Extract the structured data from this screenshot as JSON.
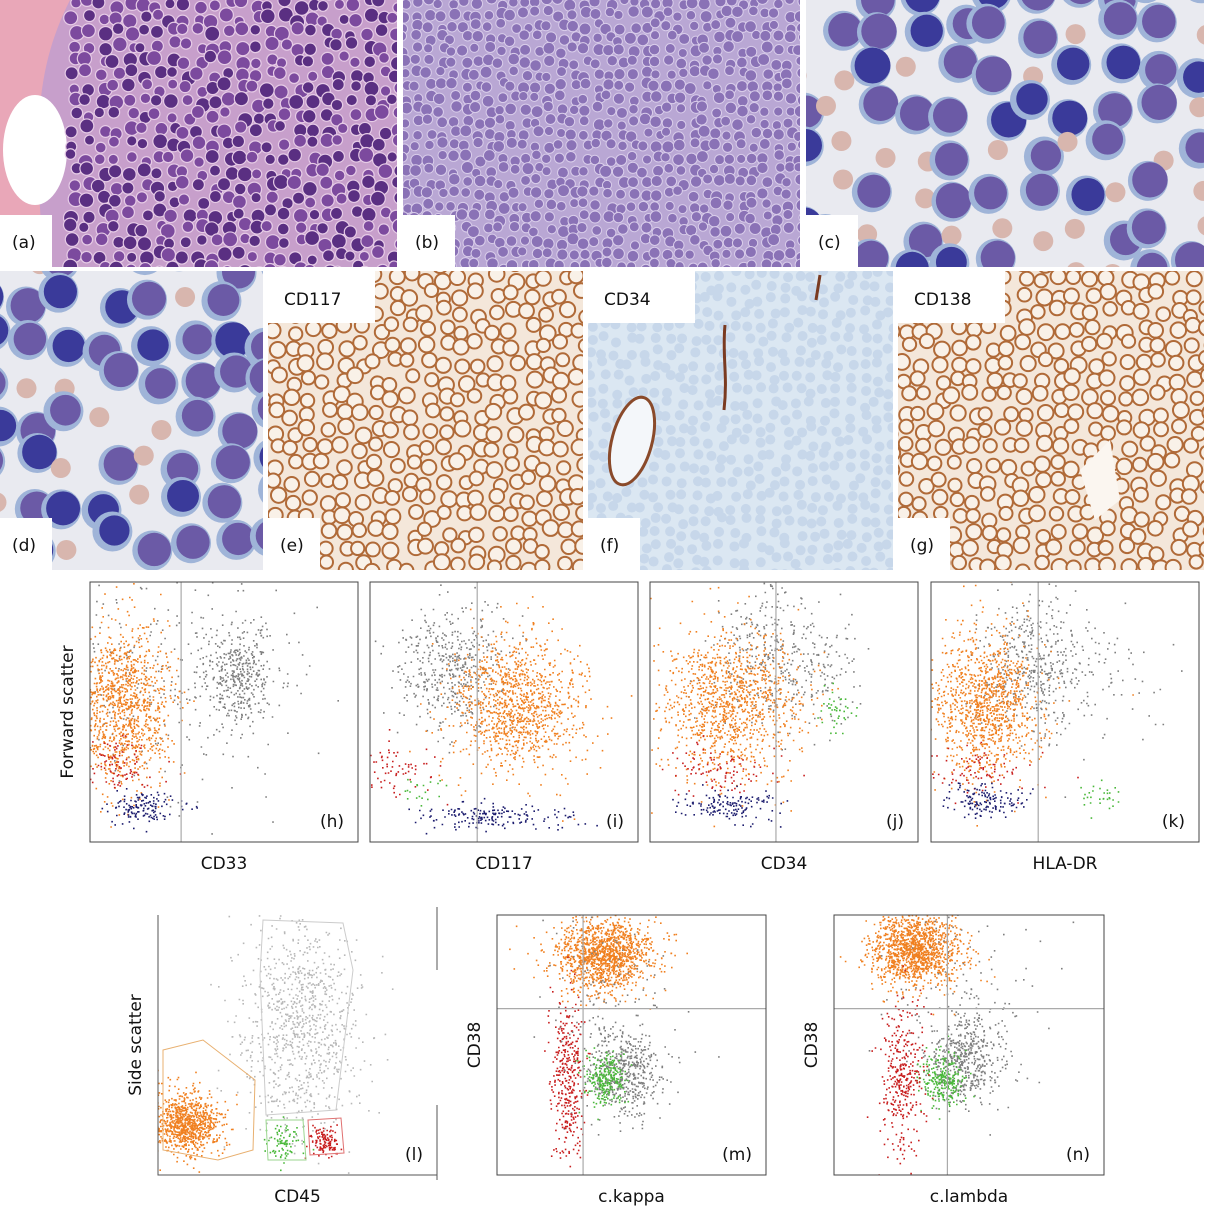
{
  "micrographs": [
    {
      "label": "(a)"
    },
    {
      "label": "(b)"
    },
    {
      "label": "(c)"
    },
    {
      "label": "(d)"
    },
    {
      "label": "(e)",
      "stain": "CD117"
    },
    {
      "label": "(f)",
      "stain": "CD34"
    },
    {
      "label": "(g)",
      "stain": "CD138"
    }
  ],
  "flow_plots": [
    {
      "label": "(h)",
      "x_axis": "CD33",
      "y_axis": "Forward scatter"
    },
    {
      "label": "(i)",
      "x_axis": "CD117"
    },
    {
      "label": "(j)",
      "x_axis": "CD34"
    },
    {
      "label": "(k)",
      "x_axis": "HLA-DR"
    },
    {
      "label": "(l)",
      "x_axis": "CD45",
      "y_axis": "Side scatter"
    },
    {
      "label": "(m)",
      "x_axis": "c.kappa",
      "y_axis": "CD38"
    },
    {
      "label": "(n)",
      "x_axis": "c.lambda",
      "y_axis": "CD38"
    }
  ]
}
